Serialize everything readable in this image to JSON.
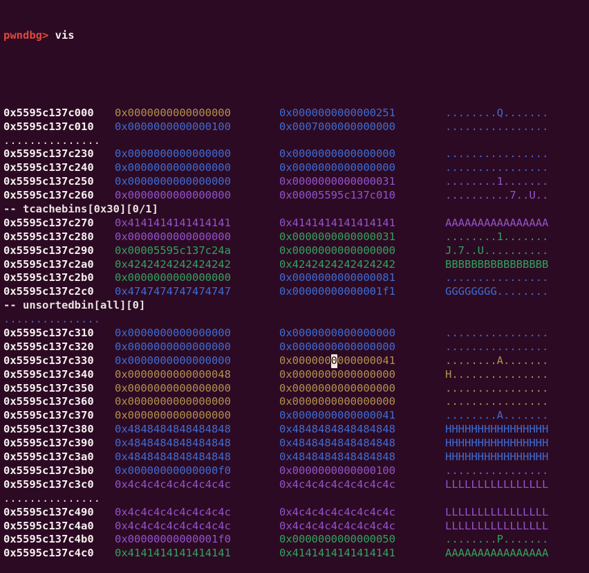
{
  "terminal": {
    "prompt": "pwndbg>",
    "command": "vis"
  },
  "colors": {
    "background": "#2d0a23",
    "address": "#f5f2f0",
    "prompt_red": "#dd4a3c",
    "command_white": "#f5f2f0",
    "yellow": "#b2914e",
    "blue": "#3e6cd2",
    "purple": "#9253cc",
    "green": "#31a35e",
    "white": "#e9e5e2",
    "cursor_bg": "#f1e9dc",
    "cursor_fg": "#241208"
  },
  "rows": [
    {
      "t": "hex",
      "addr": "0x5595c137c000",
      "q1": "0x0000000000000000",
      "c1": "yellow",
      "q2": "0x0000000000000251",
      "c2": "blue",
      "a": "........Q.......",
      "ca": "blue"
    },
    {
      "t": "hex",
      "addr": "0x5595c137c010",
      "q1": "0x0000000000000100",
      "c1": "blue",
      "q2": "0x0007000000000000",
      "c2": "blue",
      "a": "................",
      "ca": "blue"
    },
    {
      "t": "dots",
      "text": "...............",
      "color": "white"
    },
    {
      "t": "hex",
      "addr": "0x5595c137c230",
      "q1": "0x0000000000000000",
      "c1": "blue",
      "q2": "0x0000000000000000",
      "c2": "blue",
      "a": "................",
      "ca": "blue"
    },
    {
      "t": "hex",
      "addr": "0x5595c137c240",
      "q1": "0x0000000000000000",
      "c1": "blue",
      "q2": "0x0000000000000000",
      "c2": "blue",
      "a": "................",
      "ca": "blue"
    },
    {
      "t": "hex",
      "addr": "0x5595c137c250",
      "q1": "0x0000000000000000",
      "c1": "blue",
      "q2": "0x0000000000000031",
      "c2": "purple",
      "a": "........1.......",
      "ca": "purple"
    },
    {
      "t": "hex",
      "addr": "0x5595c137c260",
      "q1": "0x0000000000000000",
      "c1": "purple",
      "q2": "0x00005595c137c010",
      "c2": "purple",
      "a": "..........7..U..",
      "ca": "purple"
    },
    {
      "t": "label",
      "text": "-- tcachebins[0x30][0/1]",
      "color": "white"
    },
    {
      "t": "hex",
      "addr": "0x5595c137c270",
      "q1": "0x4141414141414141",
      "c1": "purple",
      "q2": "0x4141414141414141",
      "c2": "purple",
      "a": "AAAAAAAAAAAAAAAA",
      "ca": "purple"
    },
    {
      "t": "hex",
      "addr": "0x5595c137c280",
      "q1": "0x0000000000000000",
      "c1": "purple",
      "q2": "0x0000000000000031",
      "c2": "green",
      "a": "........1.......",
      "ca": "green"
    },
    {
      "t": "hex",
      "addr": "0x5595c137c290",
      "q1": "0x00005595c137c24a",
      "c1": "green",
      "q2": "0x0000000000000000",
      "c2": "green",
      "a": "J.7..U..........",
      "ca": "green"
    },
    {
      "t": "hex",
      "addr": "0x5595c137c2a0",
      "q1": "0x4242424242424242",
      "c1": "green",
      "q2": "0x4242424242424242",
      "c2": "green",
      "a": "BBBBBBBBBBBBBBBB",
      "ca": "green"
    },
    {
      "t": "hex",
      "addr": "0x5595c137c2b0",
      "q1": "0x0000000000000000",
      "c1": "green",
      "q2": "0x0000000000000081",
      "c2": "blue",
      "a": "................",
      "ca": "blue"
    },
    {
      "t": "hex",
      "addr": "0x5595c137c2c0",
      "q1": "0x4747474747474747",
      "c1": "blue",
      "q2": "0x00000000000001f1",
      "c2": "blue",
      "a": "GGGGGGGG........",
      "ca": "blue"
    },
    {
      "t": "label",
      "text": "-- unsortedbin[all][0]",
      "color": "white"
    },
    {
      "t": "dots",
      "text": "...............",
      "color": "blue"
    },
    {
      "t": "hex",
      "addr": "0x5595c137c310",
      "q1": "0x0000000000000000",
      "c1": "blue",
      "q2": "0x0000000000000000",
      "c2": "blue",
      "a": "................",
      "ca": "blue"
    },
    {
      "t": "hex",
      "addr": "0x5595c137c320",
      "q1": "0x0000000000000000",
      "c1": "blue",
      "q2": "0x0000000000000000",
      "c2": "blue",
      "a": "................",
      "ca": "blue"
    },
    {
      "t": "hex",
      "addr": "0x5595c137c330",
      "q1": "0x0000000000000000",
      "c1": "blue",
      "q2": "0x0000000000000041",
      "c2": "yellow",
      "a": "........A.......",
      "ca": "yellow",
      "cursor": {
        "pre": "0x000000",
        "ch": "0",
        "post": "000000041"
      }
    },
    {
      "t": "hex",
      "addr": "0x5595c137c340",
      "q1": "0x0000000000000048",
      "c1": "yellow",
      "q2": "0x0000000000000000",
      "c2": "yellow",
      "a": "H...............",
      "ca": "yellow"
    },
    {
      "t": "hex",
      "addr": "0x5595c137c350",
      "q1": "0x0000000000000000",
      "c1": "yellow",
      "q2": "0x0000000000000000",
      "c2": "yellow",
      "a": "................",
      "ca": "yellow"
    },
    {
      "t": "hex",
      "addr": "0x5595c137c360",
      "q1": "0x0000000000000000",
      "c1": "yellow",
      "q2": "0x0000000000000000",
      "c2": "yellow",
      "a": "................",
      "ca": "yellow"
    },
    {
      "t": "hex",
      "addr": "0x5595c137c370",
      "q1": "0x0000000000000000",
      "c1": "yellow",
      "q2": "0x0000000000000041",
      "c2": "blue",
      "a": "........A.......",
      "ca": "blue"
    },
    {
      "t": "hex",
      "addr": "0x5595c137c380",
      "q1": "0x4848484848484848",
      "c1": "blue",
      "q2": "0x4848484848484848",
      "c2": "blue",
      "a": "HHHHHHHHHHHHHHHH",
      "ca": "blue"
    },
    {
      "t": "hex",
      "addr": "0x5595c137c390",
      "q1": "0x4848484848484848",
      "c1": "blue",
      "q2": "0x4848484848484848",
      "c2": "blue",
      "a": "HHHHHHHHHHHHHHHH",
      "ca": "blue"
    },
    {
      "t": "hex",
      "addr": "0x5595c137c3a0",
      "q1": "0x4848484848484848",
      "c1": "blue",
      "q2": "0x4848484848484848",
      "c2": "blue",
      "a": "HHHHHHHHHHHHHHHH",
      "ca": "blue"
    },
    {
      "t": "hex",
      "addr": "0x5595c137c3b0",
      "q1": "0x00000000000000f0",
      "c1": "blue",
      "q2": "0x0000000000000100",
      "c2": "purple",
      "a": "................",
      "ca": "purple"
    },
    {
      "t": "hex",
      "addr": "0x5595c137c3c0",
      "q1": "0x4c4c4c4c4c4c4c4c",
      "c1": "purple",
      "q2": "0x4c4c4c4c4c4c4c4c",
      "c2": "purple",
      "a": "LLLLLLLLLLLLLLLL",
      "ca": "purple"
    },
    {
      "t": "dots",
      "text": "...............",
      "color": "white"
    },
    {
      "t": "hex",
      "addr": "0x5595c137c490",
      "q1": "0x4c4c4c4c4c4c4c4c",
      "c1": "purple",
      "q2": "0x4c4c4c4c4c4c4c4c",
      "c2": "purple",
      "a": "LLLLLLLLLLLLLLLL",
      "ca": "purple"
    },
    {
      "t": "hex",
      "addr": "0x5595c137c4a0",
      "q1": "0x4c4c4c4c4c4c4c4c",
      "c1": "purple",
      "q2": "0x4c4c4c4c4c4c4c4c",
      "c2": "purple",
      "a": "LLLLLLLLLLLLLLLL",
      "ca": "purple"
    },
    {
      "t": "hex",
      "addr": "0x5595c137c4b0",
      "q1": "0x00000000000001f0",
      "c1": "purple",
      "q2": "0x0000000000000050",
      "c2": "green",
      "a": "........P.......",
      "ca": "green"
    },
    {
      "t": "hex",
      "addr": "0x5595c137c4c0",
      "q1": "0x4141414141414141",
      "c1": "green",
      "q2": "0x4141414141414141",
      "c2": "green",
      "a": "AAAAAAAAAAAAAAAA",
      "ca": "green"
    }
  ]
}
